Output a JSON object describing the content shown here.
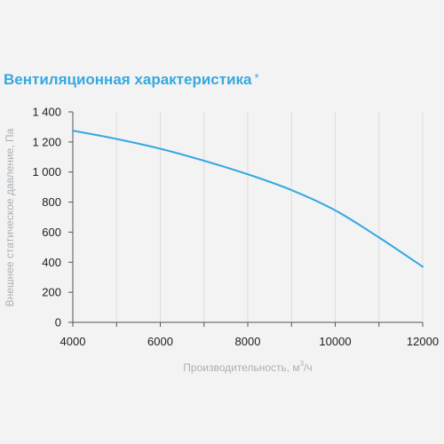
{
  "chart_data": {
    "type": "line",
    "title": "Вентиляционная характеристика",
    "title_mark": "*",
    "xlabel": "Производительность, м",
    "xlabel_sup": "3",
    "xlabel_tail": "/ч",
    "ylabel": "Внешнее статическое давление, Па",
    "xlim": [
      4000,
      12000
    ],
    "ylim": [
      0,
      1400
    ],
    "x_ticks": [
      "4000",
      "6000",
      "8000",
      "10000",
      "12000"
    ],
    "y_ticks": [
      "0",
      "200",
      "400",
      "600",
      "800",
      "1 000",
      "1 200",
      "1 400"
    ],
    "x_tick_values": [
      4000,
      6000,
      8000,
      10000,
      12000
    ],
    "y_tick_values": [
      0,
      200,
      400,
      600,
      800,
      1000,
      1200,
      1400
    ],
    "grid": "vertical",
    "series": [
      {
        "color": "#35a9e0",
        "x": [
          4000,
          5000,
          6000,
          7000,
          8000,
          9000,
          10000,
          11000,
          12000
        ],
        "y": [
          1275,
          1220,
          1155,
          1075,
          985,
          880,
          745,
          565,
          370
        ]
      }
    ]
  }
}
